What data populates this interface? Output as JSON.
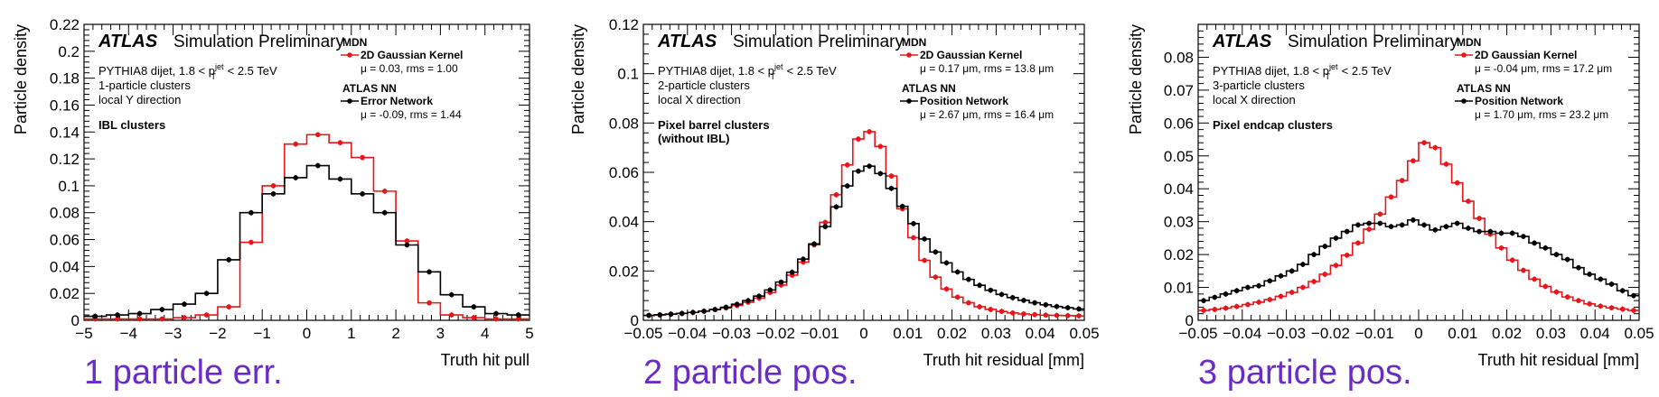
{
  "colors": {
    "mdn": "#e8161b",
    "nn": "#000000",
    "caption": "#6a2bc7"
  },
  "chart_data": [
    {
      "type": "line",
      "caption": "1 particle err.",
      "title": "ATLAS",
      "subtitle": "Simulation Preliminary",
      "info": [
        "PYTHIA8 dijet, 1.8 < p_T^jet < 2.5 TeV",
        "1-particle clusters",
        "local Y direction"
      ],
      "region": [
        "IBL clusters"
      ],
      "xlabel": "Truth hit pull",
      "ylabel": "Particle density",
      "xlim": [
        -5,
        5
      ],
      "ylim": [
        0,
        0.22
      ],
      "xticks": [
        "−5",
        "−4",
        "−3",
        "−2",
        "−1",
        "0",
        "1",
        "2",
        "3",
        "4",
        "5"
      ],
      "yticks": [
        "0",
        "0.02",
        "0.04",
        "0.06",
        "0.08",
        "0.1",
        "0.12",
        "0.14",
        "0.16",
        "0.18",
        "0.2",
        "0.22"
      ],
      "legend_position": "top-right",
      "series": [
        {
          "name": "MDN",
          "sublabel": "2D Gaussian Kernel",
          "stats": "μ = 0.03, rms = 1.00",
          "x": [
            -4.75,
            -4.25,
            -3.75,
            -3.25,
            -2.75,
            -2.25,
            -1.75,
            -1.25,
            -0.75,
            -0.25,
            0.25,
            0.75,
            1.25,
            1.75,
            2.25,
            2.75,
            3.25,
            3.75,
            4.25,
            4.75
          ],
          "y": [
            0.001,
            0.001,
            0.001,
            0.001,
            0.002,
            0.004,
            0.01,
            0.058,
            0.1,
            0.131,
            0.138,
            0.132,
            0.121,
            0.096,
            0.059,
            0.013,
            0.004,
            0.002,
            0.001,
            0.001
          ]
        },
        {
          "name": "ATLAS NN",
          "sublabel": "Error Network",
          "stats": "μ = -0.09, rms = 1.44",
          "x": [
            -4.75,
            -4.25,
            -3.75,
            -3.25,
            -2.75,
            -2.25,
            -1.75,
            -1.25,
            -0.75,
            -0.25,
            0.25,
            0.75,
            1.25,
            1.75,
            2.25,
            2.75,
            3.25,
            3.75,
            4.25,
            4.75
          ],
          "y": [
            0.003,
            0.004,
            0.005,
            0.008,
            0.012,
            0.02,
            0.045,
            0.08,
            0.094,
            0.106,
            0.115,
            0.105,
            0.094,
            0.08,
            0.056,
            0.036,
            0.019,
            0.01,
            0.005,
            0.004
          ]
        }
      ]
    },
    {
      "type": "line",
      "caption": "2 particle pos.",
      "title": "ATLAS",
      "subtitle": "Simulation Preliminary",
      "info": [
        "PYTHIA8 dijet, 1.8 < p_T^jet < 2.5 TeV",
        "2-particle clusters",
        "local X direction"
      ],
      "region": [
        "Pixel barrel clusters",
        "(without IBL)"
      ],
      "xlabel": "Truth hit residual [mm]",
      "ylabel": "Particle density",
      "xlim": [
        -0.05,
        0.05
      ],
      "ylim": [
        0,
        0.12
      ],
      "xticks": [
        "−0.05",
        "−0.04",
        "−0.03",
        "−0.02",
        "−0.01",
        "0",
        "0.01",
        "0.02",
        "0.03",
        "0.04",
        "0.05"
      ],
      "yticks": [
        "0",
        "0.02",
        "0.04",
        "0.06",
        "0.08",
        "0.1",
        "0.12"
      ],
      "legend_position": "top-right",
      "series": [
        {
          "name": "MDN",
          "sublabel": "2D Gaussian Kernel",
          "stats": "μ = 0.17 μm, rms = 13.8 μm",
          "x": [
            -0.04875,
            -0.04625,
            -0.04375,
            -0.04125,
            -0.03875,
            -0.03625,
            -0.03375,
            -0.03125,
            -0.02875,
            -0.02625,
            -0.02375,
            -0.02125,
            -0.01875,
            -0.01625,
            -0.01375,
            -0.01125,
            -0.00875,
            -0.00625,
            -0.00375,
            -0.00125,
            0.00125,
            0.00375,
            0.00625,
            0.00875,
            0.01125,
            0.01375,
            0.01625,
            0.01875,
            0.02125,
            0.02375,
            0.02625,
            0.02875,
            0.03125,
            0.03375,
            0.03625,
            0.03875,
            0.04125,
            0.04375,
            0.04625,
            0.04875
          ],
          "y": [
            0.002,
            0.0022,
            0.0025,
            0.0028,
            0.0032,
            0.0037,
            0.0043,
            0.005,
            0.006,
            0.0073,
            0.009,
            0.0113,
            0.0143,
            0.0183,
            0.0236,
            0.0306,
            0.0397,
            0.0509,
            0.063,
            0.0735,
            0.0765,
            0.0705,
            0.0585,
            0.0452,
            0.0335,
            0.0243,
            0.0175,
            0.0127,
            0.0094,
            0.0071,
            0.0055,
            0.0044,
            0.0036,
            0.003,
            0.0026,
            0.0023,
            0.0021,
            0.002,
            0.0019,
            0.0018
          ]
        },
        {
          "name": "ATLAS NN",
          "sublabel": "Position Network",
          "stats": "μ = 2.67 μm, rms = 16.4 μm",
          "x": [
            -0.04875,
            -0.04625,
            -0.04375,
            -0.04125,
            -0.03875,
            -0.03625,
            -0.03375,
            -0.03125,
            -0.02875,
            -0.02625,
            -0.02375,
            -0.02125,
            -0.01875,
            -0.01625,
            -0.01375,
            -0.01125,
            -0.00875,
            -0.00625,
            -0.00375,
            -0.00125,
            0.00125,
            0.00375,
            0.00625,
            0.00875,
            0.01125,
            0.01375,
            0.01625,
            0.01875,
            0.02125,
            0.02375,
            0.02625,
            0.02875,
            0.03125,
            0.03375,
            0.03625,
            0.03875,
            0.04125,
            0.04375,
            0.04625,
            0.04875
          ],
          "y": [
            0.002,
            0.0022,
            0.0025,
            0.0028,
            0.0032,
            0.0037,
            0.0044,
            0.0053,
            0.0065,
            0.008,
            0.0098,
            0.0123,
            0.0155,
            0.0195,
            0.0248,
            0.031,
            0.038,
            0.046,
            0.0545,
            0.0605,
            0.0625,
            0.0595,
            0.0535,
            0.0462,
            0.0392,
            0.033,
            0.0277,
            0.0233,
            0.0196,
            0.0166,
            0.0142,
            0.0122,
            0.0105,
            0.0092,
            0.0081,
            0.0071,
            0.0063,
            0.0056,
            0.0051,
            0.0046
          ]
        }
      ]
    },
    {
      "type": "line",
      "caption": "3 particle pos.",
      "title": "ATLAS",
      "subtitle": "Simulation Preliminary",
      "info": [
        "PYTHIA8 dijet, 1.8 < p_T^jet < 2.5 TeV",
        "3-particle clusters",
        "local X direction"
      ],
      "region": [
        "Pixel endcap clusters"
      ],
      "xlabel": "Truth hit residual [mm]",
      "ylabel": "Particle density",
      "xlim": [
        -0.05,
        0.05
      ],
      "ylim": [
        0,
        0.09
      ],
      "xticks": [
        "−0.05",
        "−0.04",
        "−0.03",
        "−0.02",
        "−0.01",
        "0",
        "0.01",
        "0.02",
        "0.03",
        "0.04",
        "0.05"
      ],
      "yticks": [
        "0",
        "0.01",
        "0.02",
        "0.03",
        "0.04",
        "0.05",
        "0.06",
        "0.07",
        "0.08"
      ],
      "legend_position": "top-right",
      "series": [
        {
          "name": "MDN",
          "sublabel": "2D Gaussian Kernel",
          "stats": "μ = -0.04 μm, rms = 17.2 μm",
          "x": [
            -0.04875,
            -0.04625,
            -0.04375,
            -0.04125,
            -0.03875,
            -0.03625,
            -0.03375,
            -0.03125,
            -0.02875,
            -0.02625,
            -0.02375,
            -0.02125,
            -0.01875,
            -0.01625,
            -0.01375,
            -0.01125,
            -0.00875,
            -0.00625,
            -0.00375,
            -0.00125,
            0.00125,
            0.00375,
            0.00625,
            0.00875,
            0.01125,
            0.01375,
            0.01625,
            0.01875,
            0.02125,
            0.02375,
            0.02625,
            0.02875,
            0.03125,
            0.03375,
            0.03625,
            0.03875,
            0.04125,
            0.04375,
            0.04625,
            0.04875
          ],
          "y": [
            0.003,
            0.0033,
            0.0037,
            0.0042,
            0.0048,
            0.0055,
            0.0063,
            0.0073,
            0.0085,
            0.01,
            0.0118,
            0.014,
            0.0167,
            0.0198,
            0.0235,
            0.0277,
            0.0323,
            0.0375,
            0.0425,
            0.0485,
            0.054,
            0.0525,
            0.0475,
            0.0418,
            0.0362,
            0.031,
            0.0262,
            0.022,
            0.0183,
            0.0152,
            0.0125,
            0.0103,
            0.0086,
            0.0071,
            0.006,
            0.005,
            0.0043,
            0.0038,
            0.0034,
            0.003
          ]
        },
        {
          "name": "ATLAS NN",
          "sublabel": "Position Network",
          "stats": "μ = 1.70 μm, rms = 23.2 μm",
          "x": [
            -0.04875,
            -0.04625,
            -0.04375,
            -0.04125,
            -0.03875,
            -0.03625,
            -0.03375,
            -0.03125,
            -0.02875,
            -0.02625,
            -0.02375,
            -0.02125,
            -0.01875,
            -0.01625,
            -0.01375,
            -0.01125,
            -0.00875,
            -0.00625,
            -0.00375,
            -0.00125,
            0.00125,
            0.00375,
            0.00625,
            0.00875,
            0.01125,
            0.01375,
            0.01625,
            0.01875,
            0.02125,
            0.02375,
            0.02625,
            0.02875,
            0.03125,
            0.03375,
            0.03625,
            0.03875,
            0.04125,
            0.04375,
            0.04625,
            0.04875
          ],
          "y": [
            0.006,
            0.007,
            0.008,
            0.009,
            0.01,
            0.0105,
            0.012,
            0.0135,
            0.015,
            0.017,
            0.02,
            0.0225,
            0.025,
            0.027,
            0.029,
            0.0295,
            0.0295,
            0.0285,
            0.029,
            0.0305,
            0.029,
            0.0275,
            0.0285,
            0.0295,
            0.028,
            0.027,
            0.027,
            0.0265,
            0.0265,
            0.0255,
            0.0235,
            0.022,
            0.02,
            0.0185,
            0.016,
            0.014,
            0.0125,
            0.011,
            0.009,
            0.0075
          ]
        }
      ]
    }
  ]
}
